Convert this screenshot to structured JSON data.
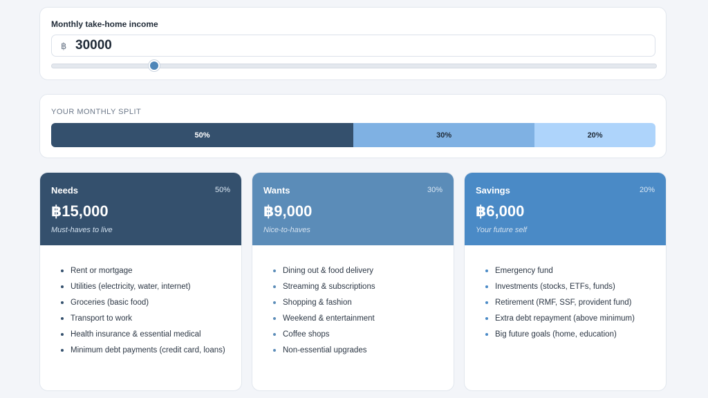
{
  "income": {
    "label": "Monthly take-home income",
    "currency_symbol": "฿",
    "value": "30000",
    "slider_fraction": 0.17
  },
  "split": {
    "heading": "YOUR MONTHLY SPLIT",
    "segments": [
      {
        "label": "50%",
        "fraction": 0.5,
        "color": "#34506d",
        "text_color": "#ffffff"
      },
      {
        "label": "30%",
        "fraction": 0.3,
        "color": "#7fb1e3",
        "text_color": "#1f2a37"
      },
      {
        "label": "20%",
        "fraction": 0.2,
        "color": "#aed4fb",
        "text_color": "#1f2a37"
      }
    ]
  },
  "categories": [
    {
      "name": "Needs",
      "percent": "50%",
      "amount": "฿15,000",
      "tagline": "Must-haves to live",
      "color": "#34506d",
      "items": [
        "Rent or mortgage",
        "Utilities (electricity, water, internet)",
        "Groceries (basic food)",
        "Transport to work",
        "Health insurance & essential medical",
        "Minimum debt payments (credit card, loans)"
      ]
    },
    {
      "name": "Wants",
      "percent": "30%",
      "amount": "฿9,000",
      "tagline": "Nice-to-haves",
      "color": "#5b8cb8",
      "items": [
        "Dining out & food delivery",
        "Streaming & subscriptions",
        "Shopping & fashion",
        "Weekend & entertainment",
        "Coffee shops",
        "Non-essential upgrades"
      ]
    },
    {
      "name": "Savings",
      "percent": "20%",
      "amount": "฿6,000",
      "tagline": "Your future self",
      "color": "#4a8ac6",
      "items": [
        "Emergency fund",
        "Investments (stocks, ETFs, funds)",
        "Retirement (RMF, SSF, provident fund)",
        "Extra debt repayment (above minimum)",
        "Big future goals (home, education)"
      ]
    }
  ]
}
